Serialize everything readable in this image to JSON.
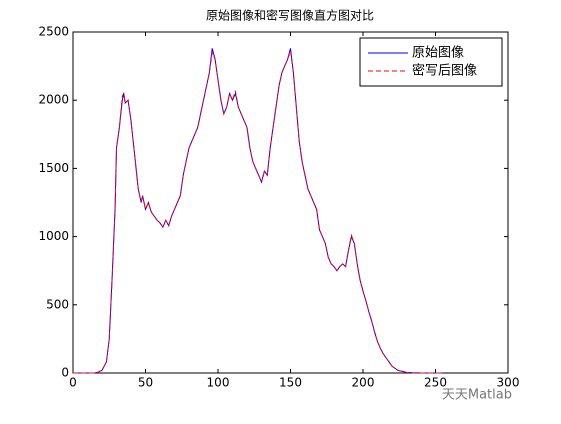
{
  "chart_data": {
    "type": "line",
    "title": "原始图像和密写图像直方图对比",
    "x": [
      0,
      10,
      15,
      17,
      20,
      23,
      25,
      27,
      29,
      30,
      32,
      34,
      35,
      36,
      38,
      40,
      42,
      44,
      45,
      47,
      48,
      50,
      52,
      54,
      56,
      58,
      60,
      62,
      64,
      66,
      68,
      70,
      72,
      74,
      76,
      78,
      80,
      82,
      84,
      86,
      88,
      90,
      92,
      94,
      96,
      98,
      100,
      102,
      104,
      106,
      108,
      110,
      112,
      114,
      116,
      118,
      120,
      122,
      124,
      126,
      128,
      130,
      132,
      134,
      136,
      138,
      140,
      142,
      144,
      146,
      148,
      150,
      152,
      154,
      156,
      158,
      160,
      162,
      164,
      166,
      168,
      170,
      172,
      174,
      176,
      178,
      180,
      182,
      184,
      186,
      188,
      190,
      192,
      194,
      196,
      198,
      200,
      202,
      204,
      206,
      208,
      210,
      212,
      214,
      216,
      218,
      220,
      222,
      224,
      226,
      228,
      230,
      234,
      240,
      255
    ],
    "series": [
      {
        "name": "原始图像",
        "color": "#0000ff",
        "linestyle": "-",
        "values": [
          0,
          0,
          0,
          5,
          20,
          80,
          250,
          700,
          1200,
          1650,
          1800,
          2000,
          2050,
          1980,
          2000,
          1850,
          1650,
          1450,
          1350,
          1250,
          1300,
          1200,
          1250,
          1180,
          1150,
          1120,
          1100,
          1070,
          1120,
          1080,
          1150,
          1200,
          1250,
          1300,
          1450,
          1550,
          1650,
          1700,
          1750,
          1800,
          1900,
          2000,
          2100,
          2200,
          2380,
          2300,
          2150,
          2000,
          1900,
          1950,
          2050,
          2000,
          2050,
          1950,
          1900,
          1850,
          1800,
          1650,
          1550,
          1500,
          1450,
          1400,
          1480,
          1450,
          1650,
          1800,
          1950,
          2100,
          2200,
          2250,
          2300,
          2380,
          2200,
          1950,
          1700,
          1550,
          1450,
          1350,
          1300,
          1250,
          1200,
          1050,
          1000,
          950,
          850,
          800,
          780,
          750,
          780,
          800,
          780,
          900,
          1000,
          950,
          800,
          680,
          600,
          530,
          450,
          380,
          300,
          230,
          180,
          140,
          110,
          80,
          50,
          35,
          20,
          15,
          10,
          5,
          2,
          0,
          0
        ]
      },
      {
        "name": "密写后图像",
        "color": "#ff0000",
        "linestyle": "--",
        "values": [
          0,
          0,
          0,
          5,
          20,
          80,
          250,
          700,
          1200,
          1650,
          1800,
          2030,
          2050,
          1980,
          2000,
          1850,
          1650,
          1450,
          1350,
          1250,
          1300,
          1200,
          1250,
          1180,
          1150,
          1120,
          1100,
          1070,
          1120,
          1080,
          1150,
          1200,
          1250,
          1300,
          1450,
          1550,
          1650,
          1700,
          1750,
          1800,
          1900,
          2000,
          2100,
          2200,
          2350,
          2300,
          2150,
          2000,
          1900,
          1950,
          2050,
          2000,
          2070,
          1950,
          1900,
          1850,
          1800,
          1650,
          1550,
          1500,
          1450,
          1400,
          1480,
          1450,
          1650,
          1800,
          1950,
          2100,
          2200,
          2250,
          2300,
          2360,
          2200,
          1950,
          1700,
          1550,
          1450,
          1350,
          1300,
          1250,
          1200,
          1050,
          1000,
          950,
          850,
          800,
          780,
          750,
          780,
          800,
          780,
          900,
          1010,
          950,
          800,
          680,
          600,
          530,
          450,
          380,
          300,
          230,
          180,
          140,
          110,
          80,
          50,
          35,
          20,
          15,
          10,
          5,
          2,
          0,
          0
        ]
      }
    ],
    "xlim": [
      0,
      300
    ],
    "xticks": [
      0,
      50,
      100,
      150,
      200,
      250,
      300
    ],
    "ylim": [
      0,
      2500
    ],
    "yticks": [
      0,
      500,
      1000,
      1500,
      2000,
      2500
    ],
    "legend": "northeast",
    "watermark": "天天Matlab"
  }
}
